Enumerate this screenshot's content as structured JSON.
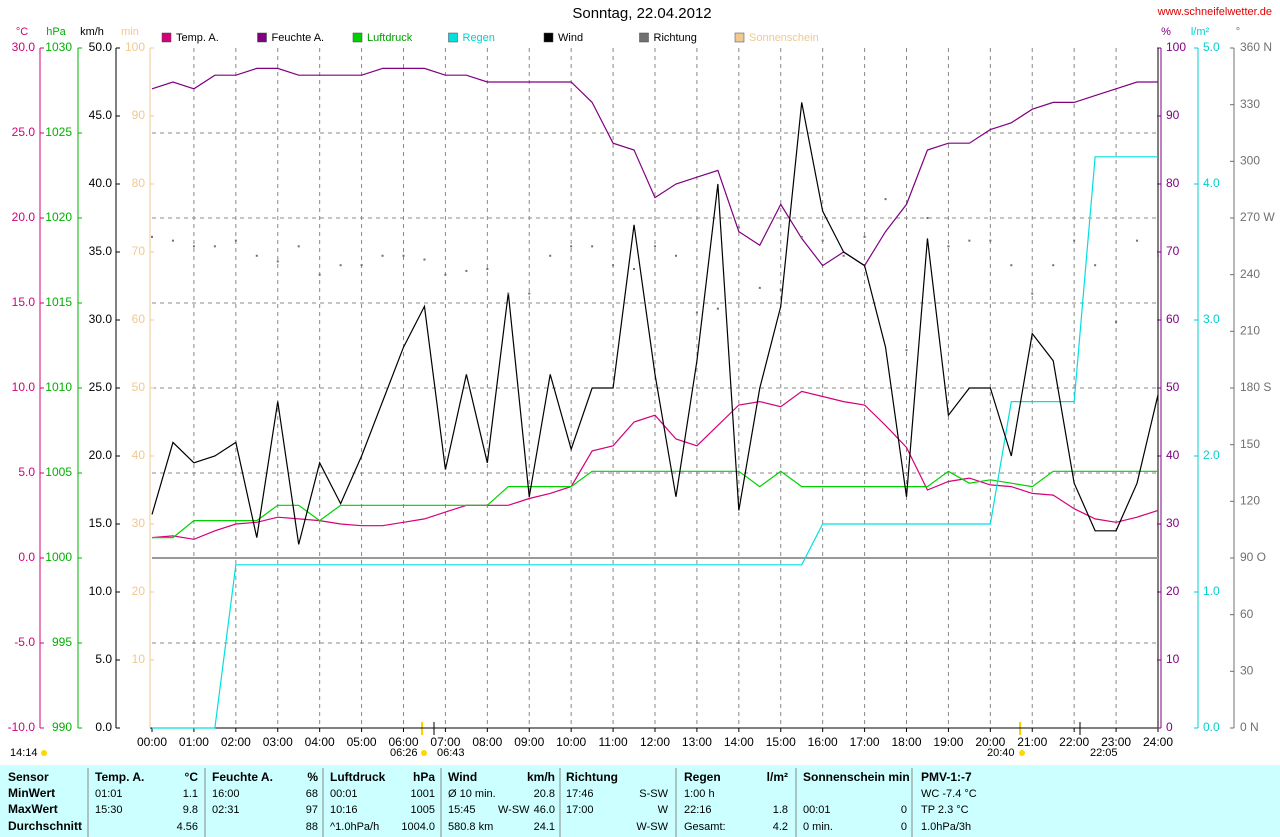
{
  "chart_data": {
    "type": "line",
    "title": "Sonntag, 22.04.2012",
    "source": "www.schneifelwetter.de",
    "x": [
      0,
      0.5,
      1,
      1.5,
      2,
      2.5,
      3,
      3.5,
      4,
      4.5,
      5,
      5.5,
      6,
      6.5,
      7,
      7.5,
      8,
      8.5,
      9,
      9.5,
      10,
      10.5,
      11,
      11.5,
      12,
      12.5,
      13,
      13.5,
      14,
      14.5,
      15,
      15.5,
      16,
      16.5,
      17,
      17.5,
      18,
      18.5,
      19,
      19.5,
      20,
      20.5,
      21,
      21.5,
      22,
      22.5,
      23,
      23.5,
      24
    ],
    "xlim": [
      0,
      24
    ],
    "xticks": [
      {
        "value": 0,
        "label": "00:00"
      },
      {
        "value": 1,
        "label": "01:00"
      },
      {
        "value": 2,
        "label": "02:00"
      },
      {
        "value": 3,
        "label": "03:00"
      },
      {
        "value": 4,
        "label": "04:00"
      },
      {
        "value": 5,
        "label": "05:00"
      },
      {
        "value": 6,
        "label": "06:00"
      },
      {
        "value": 7,
        "label": "07:00"
      },
      {
        "value": 8,
        "label": "08:00"
      },
      {
        "value": 9,
        "label": "09:00"
      },
      {
        "value": 10,
        "label": "10:00"
      },
      {
        "value": 11,
        "label": "11:00"
      },
      {
        "value": 12,
        "label": "12:00"
      },
      {
        "value": 13,
        "label": "13:00"
      },
      {
        "value": 14,
        "label": "14:00"
      },
      {
        "value": 15,
        "label": "15:00"
      },
      {
        "value": 16,
        "label": "16:00"
      },
      {
        "value": 17,
        "label": "17:00"
      },
      {
        "value": 18,
        "label": "18:00"
      },
      {
        "value": 19,
        "label": "19:00"
      },
      {
        "value": 20,
        "label": "20:00"
      },
      {
        "value": 21,
        "label": "21:00"
      },
      {
        "value": 22,
        "label": "22:00"
      },
      {
        "value": 23,
        "label": "23:00"
      },
      {
        "value": 24,
        "label": "24:00"
      }
    ],
    "grid": true,
    "y_axes": [
      {
        "title": "°C",
        "color": "#d4007a",
        "lim": [
          -10,
          30
        ],
        "ticks": [
          {
            "value": -10,
            "label": "-10.0"
          },
          {
            "value": -5,
            "label": "-5.0"
          },
          {
            "value": 0,
            "label": "0.0"
          },
          {
            "value": 5,
            "label": "5.0"
          },
          {
            "value": 10,
            "label": "10.0"
          },
          {
            "value": 15,
            "label": "15.0"
          },
          {
            "value": 20,
            "label": "20.0"
          },
          {
            "value": 25,
            "label": "25.0"
          },
          {
            "value": 30,
            "label": "30.0"
          }
        ]
      },
      {
        "title": "hPa",
        "color": "#00b000",
        "lim": [
          990,
          1030
        ],
        "ticks": [
          990,
          995,
          1000,
          1005,
          1010,
          1015,
          1020,
          1025,
          1030
        ]
      },
      {
        "title": "km/h",
        "color": "#000000",
        "lim": [
          0,
          50
        ],
        "ticks": [
          {
            "value": 0,
            "label": "0.0"
          },
          {
            "value": 5,
            "label": "5.0"
          },
          {
            "value": 10,
            "label": "10.0"
          },
          {
            "value": 15,
            "label": "15.0"
          },
          {
            "value": 20,
            "label": "20.0"
          },
          {
            "value": 25,
            "label": "25.0"
          },
          {
            "value": 30,
            "label": "30.0"
          },
          {
            "value": 35,
            "label": "35.0"
          },
          {
            "value": 40,
            "label": "40.0"
          },
          {
            "value": 45,
            "label": "45.0"
          },
          {
            "value": 50,
            "label": "50.0"
          }
        ]
      },
      {
        "title": "min",
        "color": "#f0c890",
        "lim": [
          0,
          100
        ],
        "ticks": [
          10,
          20,
          30,
          40,
          50,
          60,
          70,
          80,
          90,
          100
        ]
      },
      {
        "title": "%",
        "color": "#800080",
        "lim": [
          0,
          100
        ],
        "ticks": [
          0,
          10,
          20,
          30,
          40,
          50,
          60,
          70,
          80,
          90,
          100
        ]
      },
      {
        "title": "l/m²",
        "color": "#00d0d0",
        "lim": [
          0,
          5
        ],
        "ticks": [
          {
            "value": 0,
            "label": "0.0"
          },
          {
            "value": 1,
            "label": "1.0"
          },
          {
            "value": 2,
            "label": "2.0"
          },
          {
            "value": 3,
            "label": "3.0"
          },
          {
            "value": 4,
            "label": "4.0"
          },
          {
            "value": 5,
            "label": "5.0"
          }
        ]
      },
      {
        "title": "°",
        "color": "#707070",
        "lim": [
          0,
          360
        ],
        "ticks": [
          {
            "value": 0,
            "label": "0 N"
          },
          30,
          60,
          {
            "value": 90,
            "label": "90 O"
          },
          120,
          150,
          {
            "value": 180,
            "label": "180 S"
          },
          210,
          240,
          {
            "value": 270,
            "label": "270 W"
          },
          300,
          330,
          {
            "value": 360,
            "label": "360 N"
          }
        ]
      }
    ],
    "series": [
      {
        "name": "Temp. A.",
        "color": "#d4007a",
        "axis": 0,
        "style": "line",
        "values": [
          1.2,
          1.3,
          1.1,
          1.6,
          2.0,
          2.1,
          2.4,
          2.3,
          2.2,
          2.0,
          1.9,
          1.9,
          2.1,
          2.3,
          2.7,
          3.1,
          3.1,
          3.1,
          3.5,
          3.8,
          4.2,
          6.3,
          6.6,
          8.0,
          8.4,
          7.0,
          6.6,
          7.8,
          9.0,
          9.2,
          8.9,
          9.8,
          9.5,
          9.2,
          9.0,
          7.8,
          6.5,
          4.0,
          4.5,
          4.7,
          4.3,
          4.2,
          3.8,
          3.7,
          2.9,
          2.3,
          2.1,
          2.4,
          2.8
        ]
      },
      {
        "name": "Feuchte A.",
        "color": "#800080",
        "axis": 4,
        "style": "line",
        "values": [
          94,
          95,
          94,
          96,
          96,
          97,
          97,
          96,
          96,
          96,
          96,
          97,
          97,
          97,
          96,
          96,
          95,
          95,
          95,
          95,
          95,
          92,
          86,
          85,
          78,
          80,
          81,
          82,
          73,
          71,
          77,
          72,
          68,
          70,
          68,
          73,
          77,
          85,
          86,
          86,
          88,
          89,
          91,
          92,
          92,
          93,
          94,
          95,
          95
        ]
      },
      {
        "name": "Luftdruck",
        "color": "#00d000",
        "axis": 1,
        "style": "line",
        "values": [
          1001.2,
          1001.2,
          1002.2,
          1002.2,
          1002.2,
          1002.2,
          1003.1,
          1003.1,
          1002.2,
          1003.1,
          1003.1,
          1003.1,
          1003.1,
          1003.1,
          1003.1,
          1003.1,
          1003.1,
          1004.2,
          1004.2,
          1004.2,
          1004.2,
          1005.1,
          1005.1,
          1005.1,
          1005.1,
          1005.1,
          1005.1,
          1005.1,
          1005.1,
          1004.2,
          1005.1,
          1004.2,
          1004.2,
          1004.2,
          1004.2,
          1004.2,
          1004.2,
          1004.2,
          1005.1,
          1004.4,
          1004.6,
          1004.4,
          1004.2,
          1005.1,
          1005.1,
          1005.1,
          1005.1,
          1005.1,
          1005.1
        ]
      },
      {
        "name": "Regen",
        "color": "#00e0e0",
        "axis": 5,
        "style": "line",
        "values": [
          0,
          0,
          0,
          0,
          1.2,
          1.2,
          1.2,
          1.2,
          1.2,
          1.2,
          1.2,
          1.2,
          1.2,
          1.2,
          1.2,
          1.2,
          1.2,
          1.2,
          1.2,
          1.2,
          1.2,
          1.2,
          1.2,
          1.2,
          1.2,
          1.2,
          1.2,
          1.2,
          1.2,
          1.2,
          1.2,
          1.2,
          1.5,
          1.5,
          1.5,
          1.5,
          1.5,
          1.5,
          1.5,
          1.5,
          1.5,
          2.4,
          2.4,
          2.4,
          2.4,
          4.2,
          4.2,
          4.2,
          4.2
        ]
      },
      {
        "name": "Wind",
        "color": "#000000",
        "axis": 2,
        "style": "line",
        "values": [
          15.7,
          21,
          19.5,
          20,
          21,
          14,
          24,
          13.5,
          19.5,
          16.5,
          20,
          24,
          28,
          31,
          19,
          26,
          19.5,
          32,
          17,
          26,
          20.5,
          25,
          25,
          37,
          26,
          17,
          27,
          40,
          16,
          25,
          31,
          46,
          38,
          35,
          34,
          28,
          17,
          36,
          23,
          25,
          25,
          20,
          29,
          27,
          18,
          14.5,
          14.5,
          18,
          24.5
        ]
      },
      {
        "name": "Richtung",
        "color": "#707070",
        "axis": 6,
        "style": "dots",
        "values": [
          260,
          258,
          255,
          255,
          258,
          250,
          247,
          255,
          240,
          245,
          245,
          250,
          250,
          248,
          240,
          242,
          243,
          230,
          230,
          250,
          255,
          255,
          245,
          243,
          255,
          250,
          220,
          222,
          265,
          233,
          232,
          260,
          258,
          250,
          260,
          280,
          200,
          270,
          255,
          258,
          258,
          245,
          230,
          245,
          258,
          245,
          215,
          258,
          250
        ]
      },
      {
        "name": "Sonnenschein",
        "color": "#f0c890",
        "axis": 3,
        "style": "none"
      }
    ],
    "annotations": [
      "14:14",
      "06:26",
      "06:43",
      "20:40",
      "22:05"
    ]
  },
  "table": {
    "labels": [
      "Sensor",
      "MinWert",
      "MaxWert",
      "Durchschnitt"
    ],
    "groups": [
      {
        "header": [
          "Temp. A.",
          "°C"
        ],
        "rows": [
          {
            "time": "01:01",
            "value": "1.1"
          },
          {
            "time": "15:30",
            "value": "9.8"
          },
          {
            "value": "4.56"
          }
        ]
      },
      {
        "header": [
          "Feuchte A.",
          "%"
        ],
        "rows": [
          {
            "time": "16:00",
            "value": "68"
          },
          {
            "time": "02:31",
            "value": "97"
          },
          {
            "value": "88"
          }
        ]
      },
      {
        "header": [
          "Luftdruck",
          "hPa"
        ],
        "rows": [
          {
            "time": "00:01",
            "value": "1001"
          },
          {
            "time": "10:16",
            "value": "1005"
          },
          {
            "time": "^1.0hPa/h",
            "value": "1004.0"
          }
        ]
      },
      {
        "header": [
          "Wind",
          "km/h"
        ],
        "rows": [
          {
            "time": "Ø 10 min.",
            "value": "20.8"
          },
          {
            "time": "15:45",
            "extra": "W-SW",
            "value": "46.0"
          },
          {
            "time": "580.8 km",
            "value": "24.1"
          }
        ]
      },
      {
        "header": [
          "Richtung"
        ],
        "rows": [
          {
            "time": "17:46",
            "value": "S-SW"
          },
          {
            "time": "17:00",
            "value": "W"
          },
          {
            "value": "W-SW"
          }
        ]
      },
      {
        "header": [
          "Regen",
          "l/m²"
        ],
        "rows": [
          {
            "time": "1:00 h"
          },
          {
            "time": "22:16",
            "value": "1.8"
          },
          {
            "time": "Gesamt:",
            "value": "4.2"
          }
        ]
      },
      {
        "header": [
          "Sonnenschein min"
        ],
        "rows": [
          {},
          {
            "time": "00:01",
            "value": "0"
          },
          {
            "time": "0 min.",
            "value": "0"
          }
        ]
      },
      {
        "header": [
          "PMV-1:-7"
        ],
        "rows": [
          {
            "time": "WC -7.4 °C"
          },
          {
            "time": "TP 2.3 °C"
          },
          {
            "time": "1.0hPa/3h"
          }
        ]
      }
    ]
  }
}
